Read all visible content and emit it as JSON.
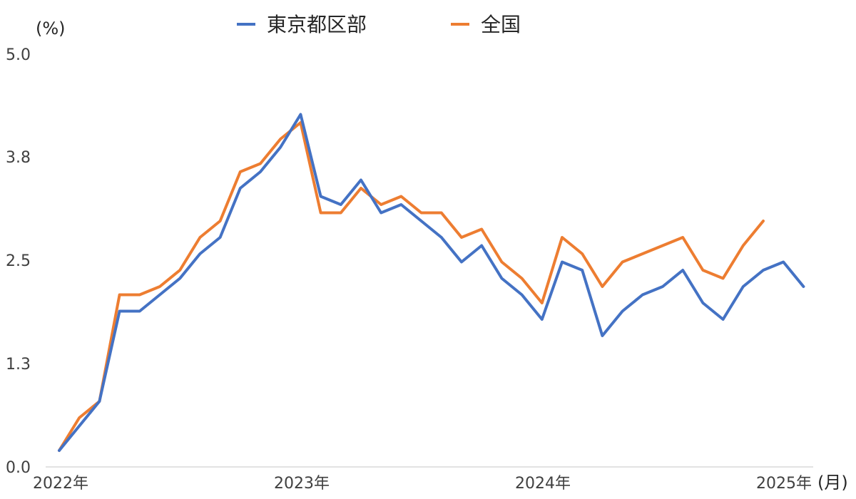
{
  "chart_data": {
    "type": "line",
    "ylabel": "(%)",
    "xlabel": "(月)",
    "ylim": [
      0.0,
      5.0
    ],
    "yticks": [
      "0.0",
      "1.3",
      "2.5",
      "3.8",
      "5.0"
    ],
    "xtick_labels": [
      "2022年",
      "2023年",
      "2024年",
      "2025年"
    ],
    "grid": false,
    "legend_position": "top",
    "x": [
      "2022-01",
      "2022-02",
      "2022-03",
      "2022-04",
      "2022-05",
      "2022-06",
      "2022-07",
      "2022-08",
      "2022-09",
      "2022-10",
      "2022-11",
      "2022-12",
      "2023-01",
      "2023-02",
      "2023-03",
      "2023-04",
      "2023-05",
      "2023-06",
      "2023-07",
      "2023-08",
      "2023-09",
      "2023-10",
      "2023-11",
      "2023-12",
      "2024-01",
      "2024-02",
      "2024-03",
      "2024-04",
      "2024-05",
      "2024-06",
      "2024-07",
      "2024-08",
      "2024-09",
      "2024-10",
      "2024-11",
      "2024-12",
      "2025-01",
      "2025-02"
    ],
    "series": [
      {
        "name": "東京都区部",
        "color": "#4472C4",
        "values": [
          0.2,
          0.5,
          0.8,
          1.9,
          1.9,
          2.1,
          2.3,
          2.6,
          2.8,
          3.4,
          3.6,
          3.9,
          4.3,
          3.3,
          3.2,
          3.5,
          3.1,
          3.2,
          3.0,
          2.8,
          2.5,
          2.7,
          2.3,
          2.1,
          1.8,
          2.5,
          2.4,
          1.6,
          1.9,
          2.1,
          2.2,
          2.4,
          2.0,
          1.8,
          2.2,
          2.4,
          2.5,
          2.2
        ]
      },
      {
        "name": "全国",
        "color": "#ED7D31",
        "values": [
          0.2,
          0.6,
          0.8,
          2.1,
          2.1,
          2.2,
          2.4,
          2.8,
          3.0,
          3.6,
          3.7,
          4.0,
          4.2,
          3.1,
          3.1,
          3.4,
          3.2,
          3.3,
          3.1,
          3.1,
          2.8,
          2.9,
          2.5,
          2.3,
          2.0,
          2.8,
          2.6,
          2.2,
          2.5,
          2.6,
          2.7,
          2.8,
          2.4,
          2.3,
          2.7,
          3.0,
          null,
          null
        ]
      }
    ]
  }
}
